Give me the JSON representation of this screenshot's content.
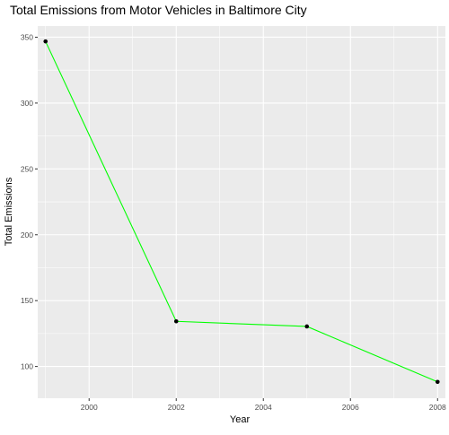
{
  "chart_data": {
    "type": "line",
    "title": "Total Emissions from Motor Vehicles in Baltimore City",
    "xlabel": "Year",
    "ylabel": "Total Emissions",
    "xlim": [
      1998.82,
      2008.18
    ],
    "ylim": [
      75.9,
      358.5
    ],
    "x_ticks": [
      2000,
      2002,
      2004,
      2006,
      2008
    ],
    "x_tick_labels": [
      "2000",
      "2002",
      "2004",
      "2006",
      "2008"
    ],
    "y_ticks": [
      100,
      150,
      200,
      250,
      300,
      350
    ],
    "y_tick_labels": [
      "100",
      "150",
      "200",
      "250",
      "300",
      "350"
    ],
    "grid": true,
    "legend": "none",
    "colors": {
      "panel_background": "#ebebeb",
      "major_grid": "#ffffff",
      "line": "#00ff00",
      "point": "#000000",
      "tick_label": "#4d4d4d"
    },
    "series": [
      {
        "x": [
          1999,
          2002,
          2005,
          2008
        ],
        "y": [
          346.8,
          134.3,
          130.4,
          88.3
        ]
      }
    ]
  }
}
